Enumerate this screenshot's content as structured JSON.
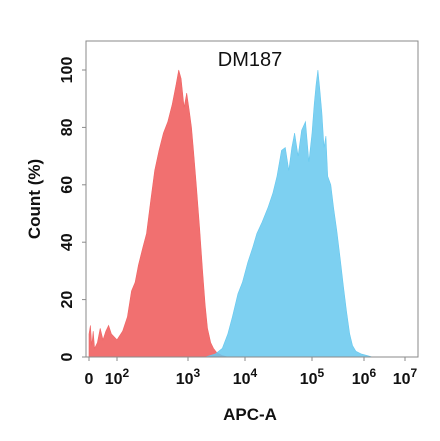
{
  "chart_data": {
    "type": "area",
    "title": "DM187",
    "xlabel": "APC-A",
    "ylabel": "Count (%)",
    "x_scale": "biexponential",
    "xlim": [
      0,
      10000000
    ],
    "ylim": [
      0,
      105
    ],
    "x_ticks": [
      {
        "value": 0,
        "base": "0",
        "exp": ""
      },
      {
        "value": 100,
        "base": "10",
        "exp": "2"
      },
      {
        "value": 1000,
        "base": "10",
        "exp": "3"
      },
      {
        "value": 10000,
        "base": "10",
        "exp": "4"
      },
      {
        "value": 100000,
        "base": "10",
        "exp": "5"
      },
      {
        "value": 1000000,
        "base": "10",
        "exp": "6"
      },
      {
        "value": 10000000,
        "base": "10",
        "exp": "7"
      }
    ],
    "y_ticks": [
      "0",
      "20",
      "40",
      "60",
      "80",
      "100"
    ],
    "y_tick_values": [
      0,
      20,
      40,
      60,
      80,
      100
    ],
    "grid": false,
    "legend": "none",
    "series": [
      {
        "color": "#f06464",
        "points": [
          [
            0,
            8
          ],
          [
            5,
            11
          ],
          [
            10,
            4
          ],
          [
            15,
            9
          ],
          [
            20,
            3
          ],
          [
            30,
            5
          ],
          [
            40,
            10
          ],
          [
            50,
            6
          ],
          [
            60,
            9
          ],
          [
            70,
            11
          ],
          [
            80,
            8
          ],
          [
            100,
            6
          ],
          [
            120,
            9
          ],
          [
            140,
            14
          ],
          [
            160,
            23
          ],
          [
            180,
            26
          ],
          [
            200,
            32
          ],
          [
            230,
            38
          ],
          [
            260,
            43
          ],
          [
            300,
            55
          ],
          [
            340,
            65
          ],
          [
            390,
            72
          ],
          [
            450,
            78
          ],
          [
            520,
            82
          ],
          [
            600,
            88
          ],
          [
            680,
            95
          ],
          [
            740,
            100
          ],
          [
            800,
            97
          ],
          [
            880,
            87
          ],
          [
            960,
            92
          ],
          [
            1050,
            86
          ],
          [
            1150,
            80
          ],
          [
            1250,
            72
          ],
          [
            1400,
            60
          ],
          [
            1600,
            45
          ],
          [
            1800,
            30
          ],
          [
            2000,
            18
          ],
          [
            2200,
            10
          ],
          [
            2500,
            5
          ],
          [
            2800,
            3
          ],
          [
            3200,
            1.5
          ],
          [
            4000,
            0.5
          ],
          [
            5000,
            0
          ]
        ]
      },
      {
        "color": "#66c8ef",
        "points": [
          [
            2000,
            0
          ],
          [
            3000,
            1
          ],
          [
            4000,
            3
          ],
          [
            5000,
            8
          ],
          [
            6000,
            14
          ],
          [
            7500,
            22
          ],
          [
            9000,
            26
          ],
          [
            11000,
            33
          ],
          [
            13000,
            38
          ],
          [
            15000,
            43
          ],
          [
            18000,
            47
          ],
          [
            22000,
            52
          ],
          [
            26000,
            57
          ],
          [
            30000,
            63
          ],
          [
            35000,
            72
          ],
          [
            40000,
            73
          ],
          [
            45000,
            65
          ],
          [
            50000,
            73
          ],
          [
            55000,
            78
          ],
          [
            62000,
            70
          ],
          [
            70000,
            79
          ],
          [
            80000,
            82
          ],
          [
            90000,
            68
          ],
          [
            100000,
            78
          ],
          [
            110000,
            88
          ],
          [
            120000,
            95
          ],
          [
            130000,
            100
          ],
          [
            140000,
            94
          ],
          [
            155000,
            85
          ],
          [
            170000,
            73
          ],
          [
            185000,
            77
          ],
          [
            200000,
            63
          ],
          [
            230000,
            60
          ],
          [
            260000,
            52
          ],
          [
            300000,
            44
          ],
          [
            350000,
            34
          ],
          [
            400000,
            25
          ],
          [
            460000,
            16
          ],
          [
            530000,
            8
          ],
          [
            600000,
            4
          ],
          [
            700000,
            2
          ],
          [
            900000,
            1
          ],
          [
            1200000,
            0.5
          ],
          [
            1600000,
            0
          ]
        ]
      }
    ]
  }
}
